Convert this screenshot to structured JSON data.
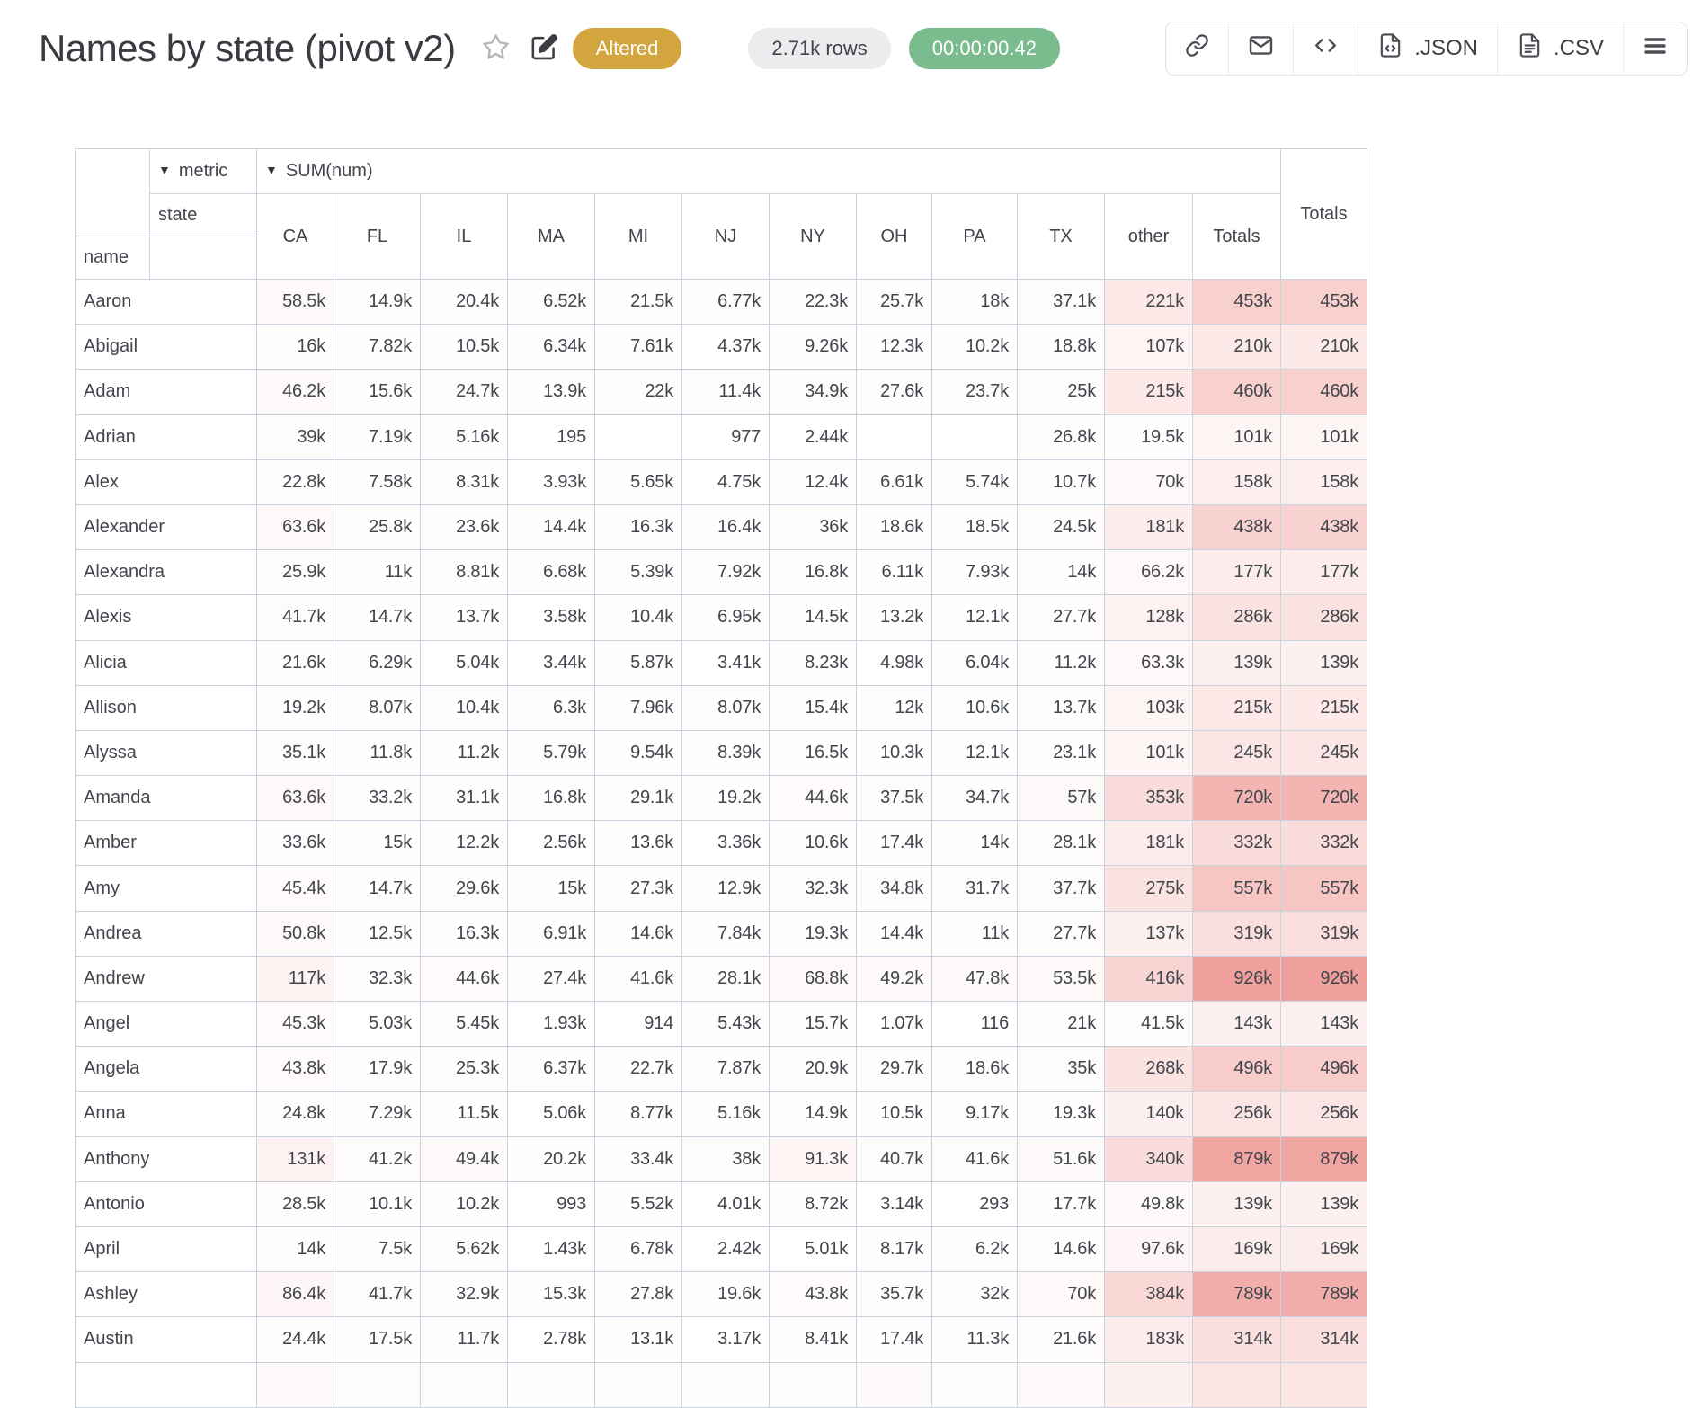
{
  "header": {
    "title": "Names by state (pivot v2)",
    "altered_badge": "Altered",
    "row_count_badge": "2.71k rows",
    "runtime_badge": "00:00:00.42",
    "icons": [
      "star-icon",
      "edit-icon",
      "link-icon",
      "mail-icon",
      "code-icon",
      "json-file-icon",
      "csv-file-icon",
      "menu-icon"
    ]
  },
  "toolbar": {
    "json_label": ".JSON",
    "csv_label": ".CSV"
  },
  "colors": {
    "altered_badge_bg": "#d2a53e",
    "rows_badge_bg": "#ececee",
    "runtime_badge_bg": "#7abc8e",
    "heat_base": "#f0a09c",
    "grid_border": "#c9d3e0",
    "value_text": "#3e4d6b"
  },
  "pivot": {
    "metric_label": "metric",
    "metric_value": "SUM(num)",
    "state_label": "state",
    "name_label": "name",
    "row_totals_label": "Totals",
    "grand_totals_label": "Totals",
    "columns": [
      "CA",
      "FL",
      "IL",
      "MA",
      "MI",
      "NJ",
      "NY",
      "OH",
      "PA",
      "TX",
      "other",
      "Totals"
    ],
    "rows": [
      {
        "name": "Aaron",
        "values": [
          "58.5k",
          "14.9k",
          "20.4k",
          "6.52k",
          "21.5k",
          "6.77k",
          "22.3k",
          "25.7k",
          "18k",
          "37.1k",
          "221k",
          "453k"
        ],
        "total": "453k"
      },
      {
        "name": "Abigail",
        "values": [
          "16k",
          "7.82k",
          "10.5k",
          "6.34k",
          "7.61k",
          "4.37k",
          "9.26k",
          "12.3k",
          "10.2k",
          "18.8k",
          "107k",
          "210k"
        ],
        "total": "210k"
      },
      {
        "name": "Adam",
        "values": [
          "46.2k",
          "15.6k",
          "24.7k",
          "13.9k",
          "22k",
          "11.4k",
          "34.9k",
          "27.6k",
          "23.7k",
          "25k",
          "215k",
          "460k"
        ],
        "total": "460k"
      },
      {
        "name": "Adrian",
        "values": [
          "39k",
          "7.19k",
          "5.16k",
          "195",
          "",
          "977",
          "2.44k",
          "",
          "",
          "26.8k",
          "19.5k",
          "101k"
        ],
        "total": "101k"
      },
      {
        "name": "Alex",
        "values": [
          "22.8k",
          "7.58k",
          "8.31k",
          "3.93k",
          "5.65k",
          "4.75k",
          "12.4k",
          "6.61k",
          "5.74k",
          "10.7k",
          "70k",
          "158k"
        ],
        "total": "158k"
      },
      {
        "name": "Alexander",
        "values": [
          "63.6k",
          "25.8k",
          "23.6k",
          "14.4k",
          "16.3k",
          "16.4k",
          "36k",
          "18.6k",
          "18.5k",
          "24.5k",
          "181k",
          "438k"
        ],
        "total": "438k"
      },
      {
        "name": "Alexandra",
        "values": [
          "25.9k",
          "11k",
          "8.81k",
          "6.68k",
          "5.39k",
          "7.92k",
          "16.8k",
          "6.11k",
          "7.93k",
          "14k",
          "66.2k",
          "177k"
        ],
        "total": "177k"
      },
      {
        "name": "Alexis",
        "values": [
          "41.7k",
          "14.7k",
          "13.7k",
          "3.58k",
          "10.4k",
          "6.95k",
          "14.5k",
          "13.2k",
          "12.1k",
          "27.7k",
          "128k",
          "286k"
        ],
        "total": "286k"
      },
      {
        "name": "Alicia",
        "values": [
          "21.6k",
          "6.29k",
          "5.04k",
          "3.44k",
          "5.87k",
          "3.41k",
          "8.23k",
          "4.98k",
          "6.04k",
          "11.2k",
          "63.3k",
          "139k"
        ],
        "total": "139k"
      },
      {
        "name": "Allison",
        "values": [
          "19.2k",
          "8.07k",
          "10.4k",
          "6.3k",
          "7.96k",
          "8.07k",
          "15.4k",
          "12k",
          "10.6k",
          "13.7k",
          "103k",
          "215k"
        ],
        "total": "215k"
      },
      {
        "name": "Alyssa",
        "values": [
          "35.1k",
          "11.8k",
          "11.2k",
          "5.79k",
          "9.54k",
          "8.39k",
          "16.5k",
          "10.3k",
          "12.1k",
          "23.1k",
          "101k",
          "245k"
        ],
        "total": "245k"
      },
      {
        "name": "Amanda",
        "values": [
          "63.6k",
          "33.2k",
          "31.1k",
          "16.8k",
          "29.1k",
          "19.2k",
          "44.6k",
          "37.5k",
          "34.7k",
          "57k",
          "353k",
          "720k"
        ],
        "total": "720k"
      },
      {
        "name": "Amber",
        "values": [
          "33.6k",
          "15k",
          "12.2k",
          "2.56k",
          "13.6k",
          "3.36k",
          "10.6k",
          "17.4k",
          "14k",
          "28.1k",
          "181k",
          "332k"
        ],
        "total": "332k"
      },
      {
        "name": "Amy",
        "values": [
          "45.4k",
          "14.7k",
          "29.6k",
          "15k",
          "27.3k",
          "12.9k",
          "32.3k",
          "34.8k",
          "31.7k",
          "37.7k",
          "275k",
          "557k"
        ],
        "total": "557k"
      },
      {
        "name": "Andrea",
        "values": [
          "50.8k",
          "12.5k",
          "16.3k",
          "6.91k",
          "14.6k",
          "7.84k",
          "19.3k",
          "14.4k",
          "11k",
          "27.7k",
          "137k",
          "319k"
        ],
        "total": "319k"
      },
      {
        "name": "Andrew",
        "values": [
          "117k",
          "32.3k",
          "44.6k",
          "27.4k",
          "41.6k",
          "28.1k",
          "68.8k",
          "49.2k",
          "47.8k",
          "53.5k",
          "416k",
          "926k"
        ],
        "total": "926k"
      },
      {
        "name": "Angel",
        "values": [
          "45.3k",
          "5.03k",
          "5.45k",
          "1.93k",
          "914",
          "5.43k",
          "15.7k",
          "1.07k",
          "116",
          "21k",
          "41.5k",
          "143k"
        ],
        "total": "143k"
      },
      {
        "name": "Angela",
        "values": [
          "43.8k",
          "17.9k",
          "25.3k",
          "6.37k",
          "22.7k",
          "7.87k",
          "20.9k",
          "29.7k",
          "18.6k",
          "35k",
          "268k",
          "496k"
        ],
        "total": "496k"
      },
      {
        "name": "Anna",
        "values": [
          "24.8k",
          "7.29k",
          "11.5k",
          "5.06k",
          "8.77k",
          "5.16k",
          "14.9k",
          "10.5k",
          "9.17k",
          "19.3k",
          "140k",
          "256k"
        ],
        "total": "256k"
      },
      {
        "name": "Anthony",
        "values": [
          "131k",
          "41.2k",
          "49.4k",
          "20.2k",
          "33.4k",
          "38k",
          "91.3k",
          "40.7k",
          "41.6k",
          "51.6k",
          "340k",
          "879k"
        ],
        "total": "879k"
      },
      {
        "name": "Antonio",
        "values": [
          "28.5k",
          "10.1k",
          "10.2k",
          "993",
          "5.52k",
          "4.01k",
          "8.72k",
          "3.14k",
          "293",
          "17.7k",
          "49.8k",
          "139k"
        ],
        "total": "139k"
      },
      {
        "name": "April",
        "values": [
          "14k",
          "7.5k",
          "5.62k",
          "1.43k",
          "6.78k",
          "2.42k",
          "5.01k",
          "8.17k",
          "6.2k",
          "14.6k",
          "97.6k",
          "169k"
        ],
        "total": "169k"
      },
      {
        "name": "Ashley",
        "values": [
          "86.4k",
          "41.7k",
          "32.9k",
          "15.3k",
          "27.8k",
          "19.6k",
          "43.8k",
          "35.7k",
          "32k",
          "70k",
          "384k",
          "789k"
        ],
        "total": "789k"
      },
      {
        "name": "Austin",
        "values": [
          "24.4k",
          "17.5k",
          "11.7k",
          "2.78k",
          "13.1k",
          "3.17k",
          "8.41k",
          "17.4k",
          "11.3k",
          "21.6k",
          "183k",
          "314k"
        ],
        "total": "314k"
      }
    ]
  }
}
